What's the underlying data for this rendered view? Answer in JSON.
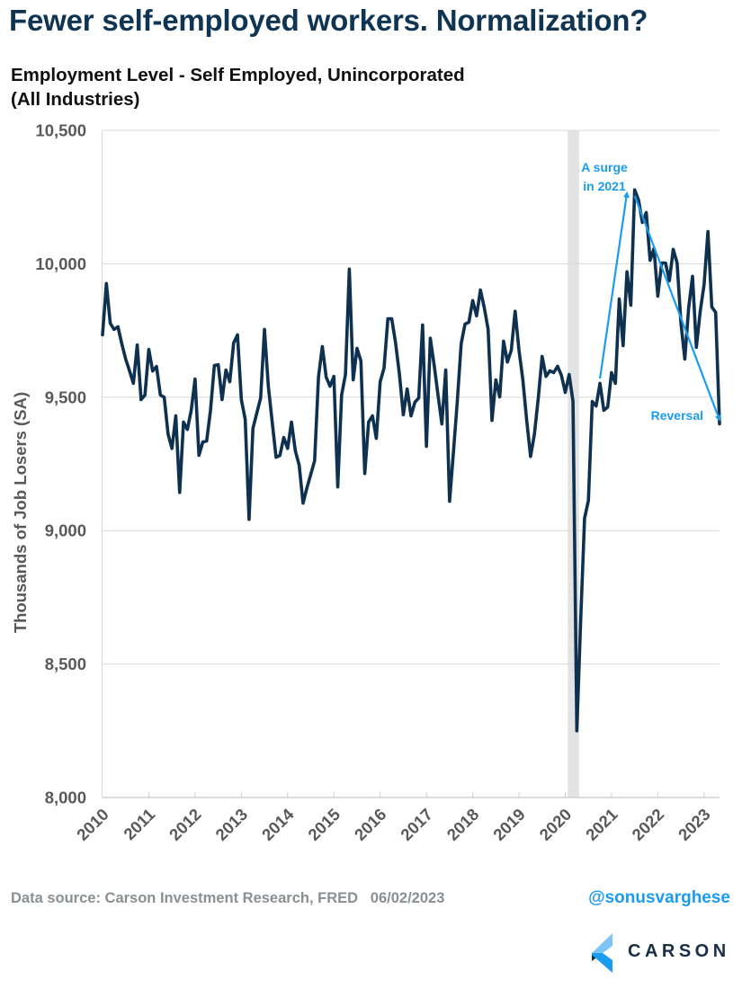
{
  "header": {
    "title": "Fewer self-employed workers. Normalization?",
    "subtitle_line1": "Employment Level - Self Employed, Unincorporated",
    "subtitle_line2": "(All Industries)"
  },
  "footer": {
    "source": "Data source: Carson Investment Research, FRED   06/02/2023",
    "handle": "@sonusvarghese",
    "logo_text": "CARSON"
  },
  "colors": {
    "line": "#0f3150",
    "annotation": "#1a9cf0",
    "recession": "#e3e3e3",
    "grid": "#d9d9d9",
    "axis_text": "#595959"
  },
  "chart_data": {
    "type": "line",
    "title": "Employment Level - Self Employed, Unincorporated (All Industries)",
    "xlabel": "",
    "ylabel": "Thousands of Job Losers (SA)",
    "ylim": [
      8000,
      10500
    ],
    "yticks": [
      8000,
      8500,
      9000,
      9500,
      10000,
      10500
    ],
    "ytick_labels": [
      "8,000",
      "8,500",
      "9,000",
      "9,500",
      "10,000",
      "10,500"
    ],
    "xticks": [
      "2010",
      "2011",
      "2012",
      "2013",
      "2014",
      "2015",
      "2016",
      "2017",
      "2018",
      "2019",
      "2020",
      "2021",
      "2022",
      "2023"
    ],
    "x_start": "2010-01",
    "x_end": "2023-05",
    "frequency": "monthly",
    "grid": "horizontal",
    "recession_shading": {
      "start": "2020-02",
      "end": "2020-04"
    },
    "series": [
      {
        "name": "Self Employed, Unincorporated",
        "values": [
          9734,
          9926,
          9777,
          9754,
          9764,
          9700,
          9643,
          9599,
          9552,
          9696,
          9491,
          9508,
          9679,
          9598,
          9615,
          9508,
          9500,
          9362,
          9308,
          9430,
          9143,
          9407,
          9379,
          9451,
          9568,
          9282,
          9332,
          9336,
          9451,
          9619,
          9622,
          9491,
          9602,
          9558,
          9703,
          9734,
          9491,
          9417,
          9042,
          9383,
          9440,
          9497,
          9754,
          9541,
          9407,
          9275,
          9282,
          9349,
          9308,
          9407,
          9299,
          9245,
          9103,
          9160,
          9211,
          9262,
          9575,
          9690,
          9575,
          9541,
          9578,
          9164,
          9508,
          9585,
          9980,
          9565,
          9683,
          9636,
          9214,
          9407,
          9430,
          9346,
          9558,
          9609,
          9794,
          9794,
          9703,
          9585,
          9434,
          9531,
          9430,
          9481,
          9497,
          9771,
          9316,
          9721,
          9620,
          9508,
          9400,
          9602,
          9110,
          9295,
          9484,
          9700,
          9774,
          9781,
          9862,
          9805,
          9902,
          9835,
          9754,
          9413,
          9565,
          9501,
          9710,
          9632,
          9676,
          9822,
          9676,
          9565,
          9413,
          9278,
          9362,
          9497,
          9653,
          9578,
          9599,
          9592,
          9616,
          9582,
          9518,
          9585,
          9484,
          8250,
          8665,
          9046,
          9113,
          9484,
          9467,
          9552,
          9451,
          9463,
          9592,
          9552,
          9868,
          9693,
          9970,
          9845,
          10277,
          10239,
          10155,
          10192,
          10013,
          10057,
          9879,
          10003,
          10003,
          9936,
          10054,
          10003,
          9777,
          9643,
          9835,
          9953,
          9687,
          9822,
          9922,
          10121,
          9838,
          9818,
          9400
        ]
      }
    ],
    "annotations": [
      {
        "text_line1": "A surge",
        "text_line2": "in 2021",
        "arrow_from": {
          "month_index": 129,
          "value": 9570
        },
        "arrow_to": {
          "month_index": 136,
          "value": 10265
        }
      },
      {
        "text_line1": "Reversal",
        "arrow_from": {
          "month_index": 138,
          "value": 10255
        },
        "arrow_to": {
          "month_index": 160,
          "value": 9415
        }
      }
    ]
  }
}
